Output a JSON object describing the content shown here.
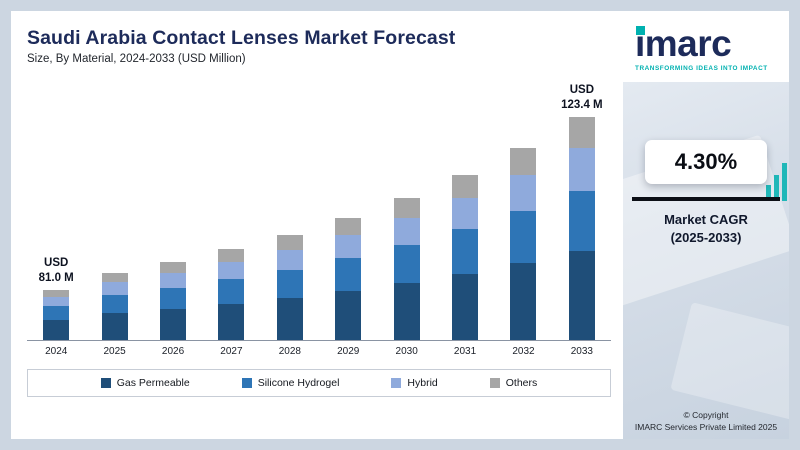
{
  "header": {
    "title": "Saudi Arabia Contact Lenses Market Forecast",
    "subtitle": "Size, By Material, 2024-2033 (USD Million)"
  },
  "chart_data": {
    "type": "bar",
    "stacked": true,
    "title": "Saudi Arabia Contact Lenses Market Forecast",
    "subtitle": "Size, By Material, 2024-2033 (USD Million)",
    "unit": "USD Million",
    "categories": [
      "2024",
      "2025",
      "2026",
      "2027",
      "2028",
      "2029",
      "2030",
      "2031",
      "2032",
      "2033"
    ],
    "series": [
      {
        "name": "Gas Permeable",
        "color": "#1f4e79",
        "values": [
          32.4,
          35.2,
          36.8,
          38.3,
          40.0,
          41.7,
          43.5,
          45.4,
          47.3,
          49.4
        ]
      },
      {
        "name": "Silicone Hydrogel",
        "color": "#2e75b6",
        "values": [
          21.9,
          23.8,
          24.8,
          25.9,
          27.0,
          28.1,
          29.3,
          30.6,
          31.9,
          33.3
        ]
      },
      {
        "name": "Hybrid",
        "color": "#8faadc",
        "values": [
          15.4,
          16.7,
          17.5,
          18.2,
          19.0,
          19.8,
          20.7,
          21.5,
          22.5,
          23.4
        ]
      },
      {
        "name": "Others",
        "color": "#a6a6a6",
        "values": [
          11.3,
          12.4,
          12.8,
          13.4,
          13.9,
          14.6,
          15.2,
          15.9,
          16.6,
          17.3
        ]
      }
    ],
    "totals": [
      81.0,
      88.1,
      91.9,
      95.8,
      99.9,
      104.2,
      108.7,
      113.4,
      118.3,
      123.4
    ],
    "labeled_totals": {
      "2024": "USD 81.0 M",
      "2033": "USD 123.4 M"
    },
    "value_labels": [
      {
        "index": 0,
        "lines": [
          "USD",
          "81.0 M"
        ]
      },
      {
        "index": 9,
        "lines": [
          "USD",
          "123.4 M"
        ]
      }
    ],
    "xlabel": "",
    "ylabel": "",
    "y_axis_visible": false,
    "grid": false,
    "legend_position": "bottom"
  },
  "sidebar": {
    "logo_text": "imarc",
    "tagline": "TRANSFORMING IDEAS INTO IMPACT",
    "cagr_value": "4.30%",
    "cagr_label_line1": "Market CAGR",
    "cagr_label_line2": "(2025-2033)",
    "copyright_line1": "© Copyright",
    "copyright_line2": "IMARC Services Private Limited 2025"
  },
  "colors": {
    "brand_navy": "#1d2b5a",
    "brand_teal": "#00b1b0",
    "page_background": "#ccd6e1",
    "bar_gas_permeable": "#1f4e79",
    "bar_silicone_hydrogel": "#2e75b6",
    "bar_hybrid": "#8faadc",
    "bar_others": "#a6a6a6"
  }
}
